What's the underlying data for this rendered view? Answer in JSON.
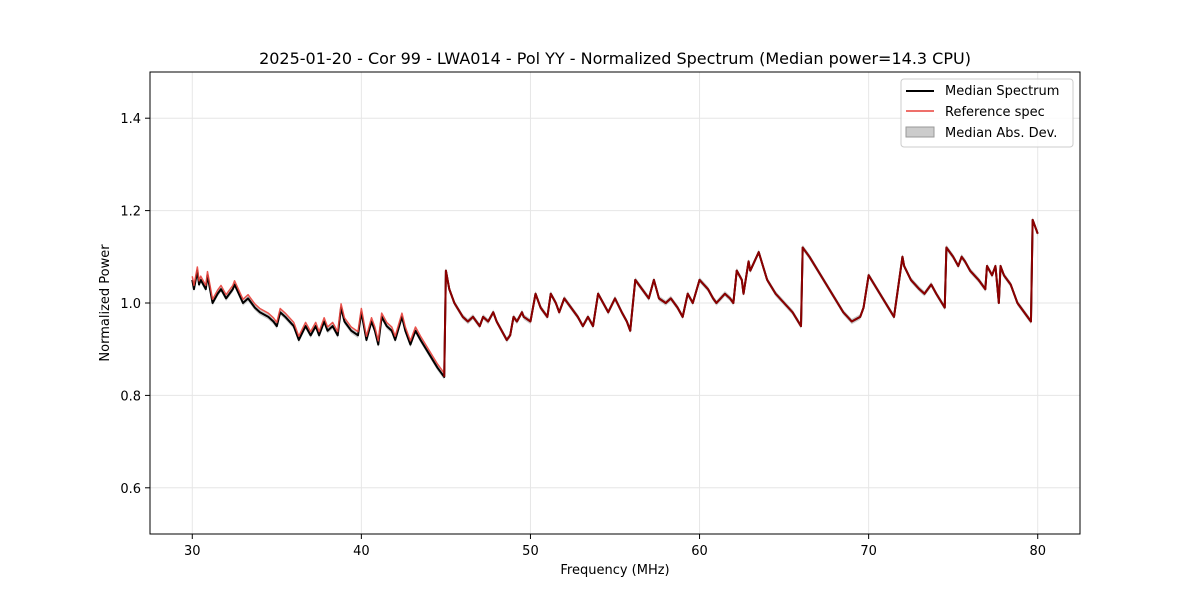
{
  "chart_data": {
    "type": "line",
    "title": "2025-01-20 - Cor 99 - LWA014 - Pol YY - Normalized Spectrum (Median power=14.3 CPU)",
    "xlabel": "Frequency (MHz)",
    "ylabel": "Normalized Power",
    "xlim": [
      27.5,
      82.5
    ],
    "ylim": [
      0.5,
      1.5
    ],
    "xticks": [
      30,
      40,
      50,
      60,
      70,
      80
    ],
    "yticks": [
      0.6,
      0.8,
      1.0,
      1.2,
      1.4
    ],
    "xtick_labels": [
      "30",
      "40",
      "50",
      "60",
      "70",
      "80"
    ],
    "ytick_labels": [
      "0.6",
      "0.8",
      "1.0",
      "1.2",
      "1.4"
    ],
    "grid": true,
    "legend_position": "top-right",
    "legend": [
      "Median Spectrum",
      "Reference spec",
      "Median Abs. Dev."
    ],
    "colors": {
      "median": "#000000",
      "reference": "#e8403a",
      "reference_overlap": "#8b0000",
      "mad": "#aaaaaa"
    },
    "mad_halfwidth": 0.006,
    "series": [
      {
        "name": "Median Spectrum",
        "x": [
          30.0,
          30.1,
          30.3,
          30.4,
          30.5,
          30.8,
          30.9,
          31.2,
          31.5,
          31.7,
          32.0,
          32.4,
          32.5,
          33.0,
          33.3,
          33.5,
          33.7,
          34.0,
          34.5,
          34.8,
          35.0,
          35.2,
          35.5,
          36.0,
          36.3,
          36.7,
          37.0,
          37.3,
          37.5,
          37.8,
          38.0,
          38.3,
          38.6,
          38.8,
          39.0,
          39.4,
          39.8,
          40.0,
          40.3,
          40.6,
          40.8,
          41.0,
          41.2,
          41.5,
          41.8,
          42.0,
          42.4,
          42.6,
          42.9,
          43.2,
          43.5,
          44.0,
          44.5,
          44.9,
          45.0,
          45.2,
          45.5,
          46.0,
          46.3,
          46.6,
          47.0,
          47.2,
          47.5,
          47.8,
          48.0,
          48.3,
          48.6,
          48.8,
          49.0,
          49.2,
          49.5,
          49.6,
          50.0,
          50.3,
          50.6,
          51.0,
          51.2,
          51.5,
          51.7,
          52.0,
          52.4,
          52.8,
          53.1,
          53.4,
          53.7,
          54.0,
          54.3,
          54.6,
          55.0,
          55.4,
          55.7,
          55.9,
          56.2,
          56.6,
          57.0,
          57.3,
          57.6,
          58.0,
          58.3,
          58.7,
          59.0,
          59.3,
          59.6,
          60.0,
          60.5,
          60.8,
          61.0,
          61.5,
          61.8,
          62.0,
          62.2,
          62.5,
          62.6,
          62.9,
          63.0,
          63.5,
          64.0,
          64.5,
          65.0,
          65.5,
          66.0,
          66.1,
          66.5,
          67.0,
          67.5,
          68.0,
          68.5,
          69.0,
          69.5,
          69.7,
          70.0,
          70.5,
          71.0,
          71.5,
          72.0,
          72.1,
          72.5,
          73.0,
          73.3,
          73.7,
          74.0,
          74.5,
          74.6,
          75.0,
          75.3,
          75.5,
          75.7,
          76.0,
          76.5,
          76.9,
          77.0,
          77.3,
          77.5,
          77.7,
          77.8,
          78.0,
          78.4,
          78.8,
          79.2,
          79.6,
          79.7,
          80.0
        ],
        "y": [
          1.05,
          1.03,
          1.07,
          1.04,
          1.05,
          1.03,
          1.06,
          1.0,
          1.02,
          1.03,
          1.01,
          1.03,
          1.04,
          1.0,
          1.01,
          1.0,
          0.99,
          0.98,
          0.97,
          0.96,
          0.95,
          0.98,
          0.97,
          0.95,
          0.92,
          0.95,
          0.93,
          0.95,
          0.93,
          0.96,
          0.94,
          0.95,
          0.93,
          0.99,
          0.96,
          0.94,
          0.93,
          0.98,
          0.92,
          0.96,
          0.94,
          0.91,
          0.97,
          0.95,
          0.94,
          0.92,
          0.97,
          0.94,
          0.91,
          0.94,
          0.92,
          0.89,
          0.86,
          0.84,
          1.07,
          1.03,
          1.0,
          0.97,
          0.96,
          0.97,
          0.95,
          0.97,
          0.96,
          0.98,
          0.96,
          0.94,
          0.92,
          0.93,
          0.97,
          0.96,
          0.98,
          0.97,
          0.96,
          1.02,
          0.99,
          0.97,
          1.02,
          1.0,
          0.98,
          1.01,
          0.99,
          0.97,
          0.95,
          0.97,
          0.95,
          1.02,
          1.0,
          0.98,
          1.01,
          0.98,
          0.96,
          0.94,
          1.05,
          1.03,
          1.01,
          1.05,
          1.01,
          1.0,
          1.01,
          0.99,
          0.97,
          1.02,
          1.0,
          1.05,
          1.03,
          1.01,
          1.0,
          1.02,
          1.01,
          1.0,
          1.07,
          1.05,
          1.02,
          1.09,
          1.07,
          1.11,
          1.05,
          1.02,
          1.0,
          0.98,
          0.95,
          1.12,
          1.1,
          1.07,
          1.04,
          1.01,
          0.98,
          0.96,
          0.97,
          0.99,
          1.06,
          1.03,
          1.0,
          0.97,
          1.1,
          1.08,
          1.05,
          1.03,
          1.02,
          1.04,
          1.02,
          0.99,
          1.12,
          1.1,
          1.08,
          1.1,
          1.09,
          1.07,
          1.05,
          1.03,
          1.08,
          1.06,
          1.08,
          1.0,
          1.08,
          1.06,
          1.04,
          1.0,
          0.98,
          0.96,
          1.18,
          1.15
        ]
      }
    ]
  }
}
